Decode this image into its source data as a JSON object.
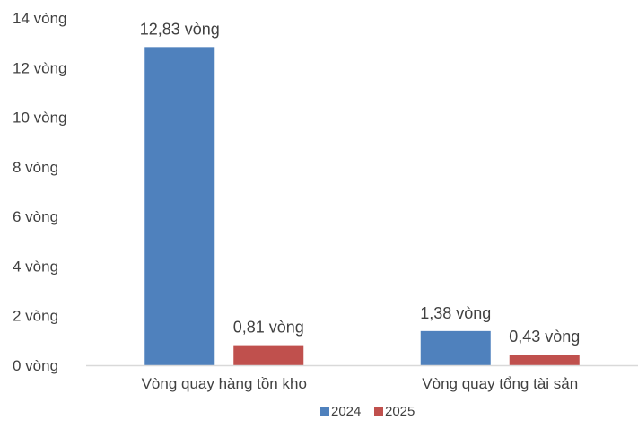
{
  "chart_data": {
    "type": "bar",
    "categories": [
      "Vòng quay hàng tồn kho",
      "Vòng quay tổng tài sản"
    ],
    "series": [
      {
        "name": "2024",
        "color": "#4f81bd",
        "values": [
          12.83,
          1.38
        ],
        "data_labels": [
          "12,83 vòng",
          "1,38 vòng"
        ]
      },
      {
        "name": "2025",
        "color": "#c0504d",
        "values": [
          0.81,
          0.43
        ],
        "data_labels": [
          "0,81 vòng",
          "0,43 vòng"
        ]
      }
    ],
    "ylim": [
      0,
      14
    ],
    "y_ticks": [
      0,
      2,
      4,
      6,
      8,
      10,
      12,
      14
    ],
    "y_tick_labels": [
      "0 vòng",
      "2 vòng",
      "4 vòng",
      "6 vòng",
      "8 vòng",
      "10 vòng",
      "12 vòng",
      "14 vòng"
    ],
    "title": "",
    "xlabel": "",
    "ylabel": "",
    "grid": false,
    "legend_position": "bottom",
    "axis_color": "#d9d9d9",
    "text_color": "#404040"
  }
}
